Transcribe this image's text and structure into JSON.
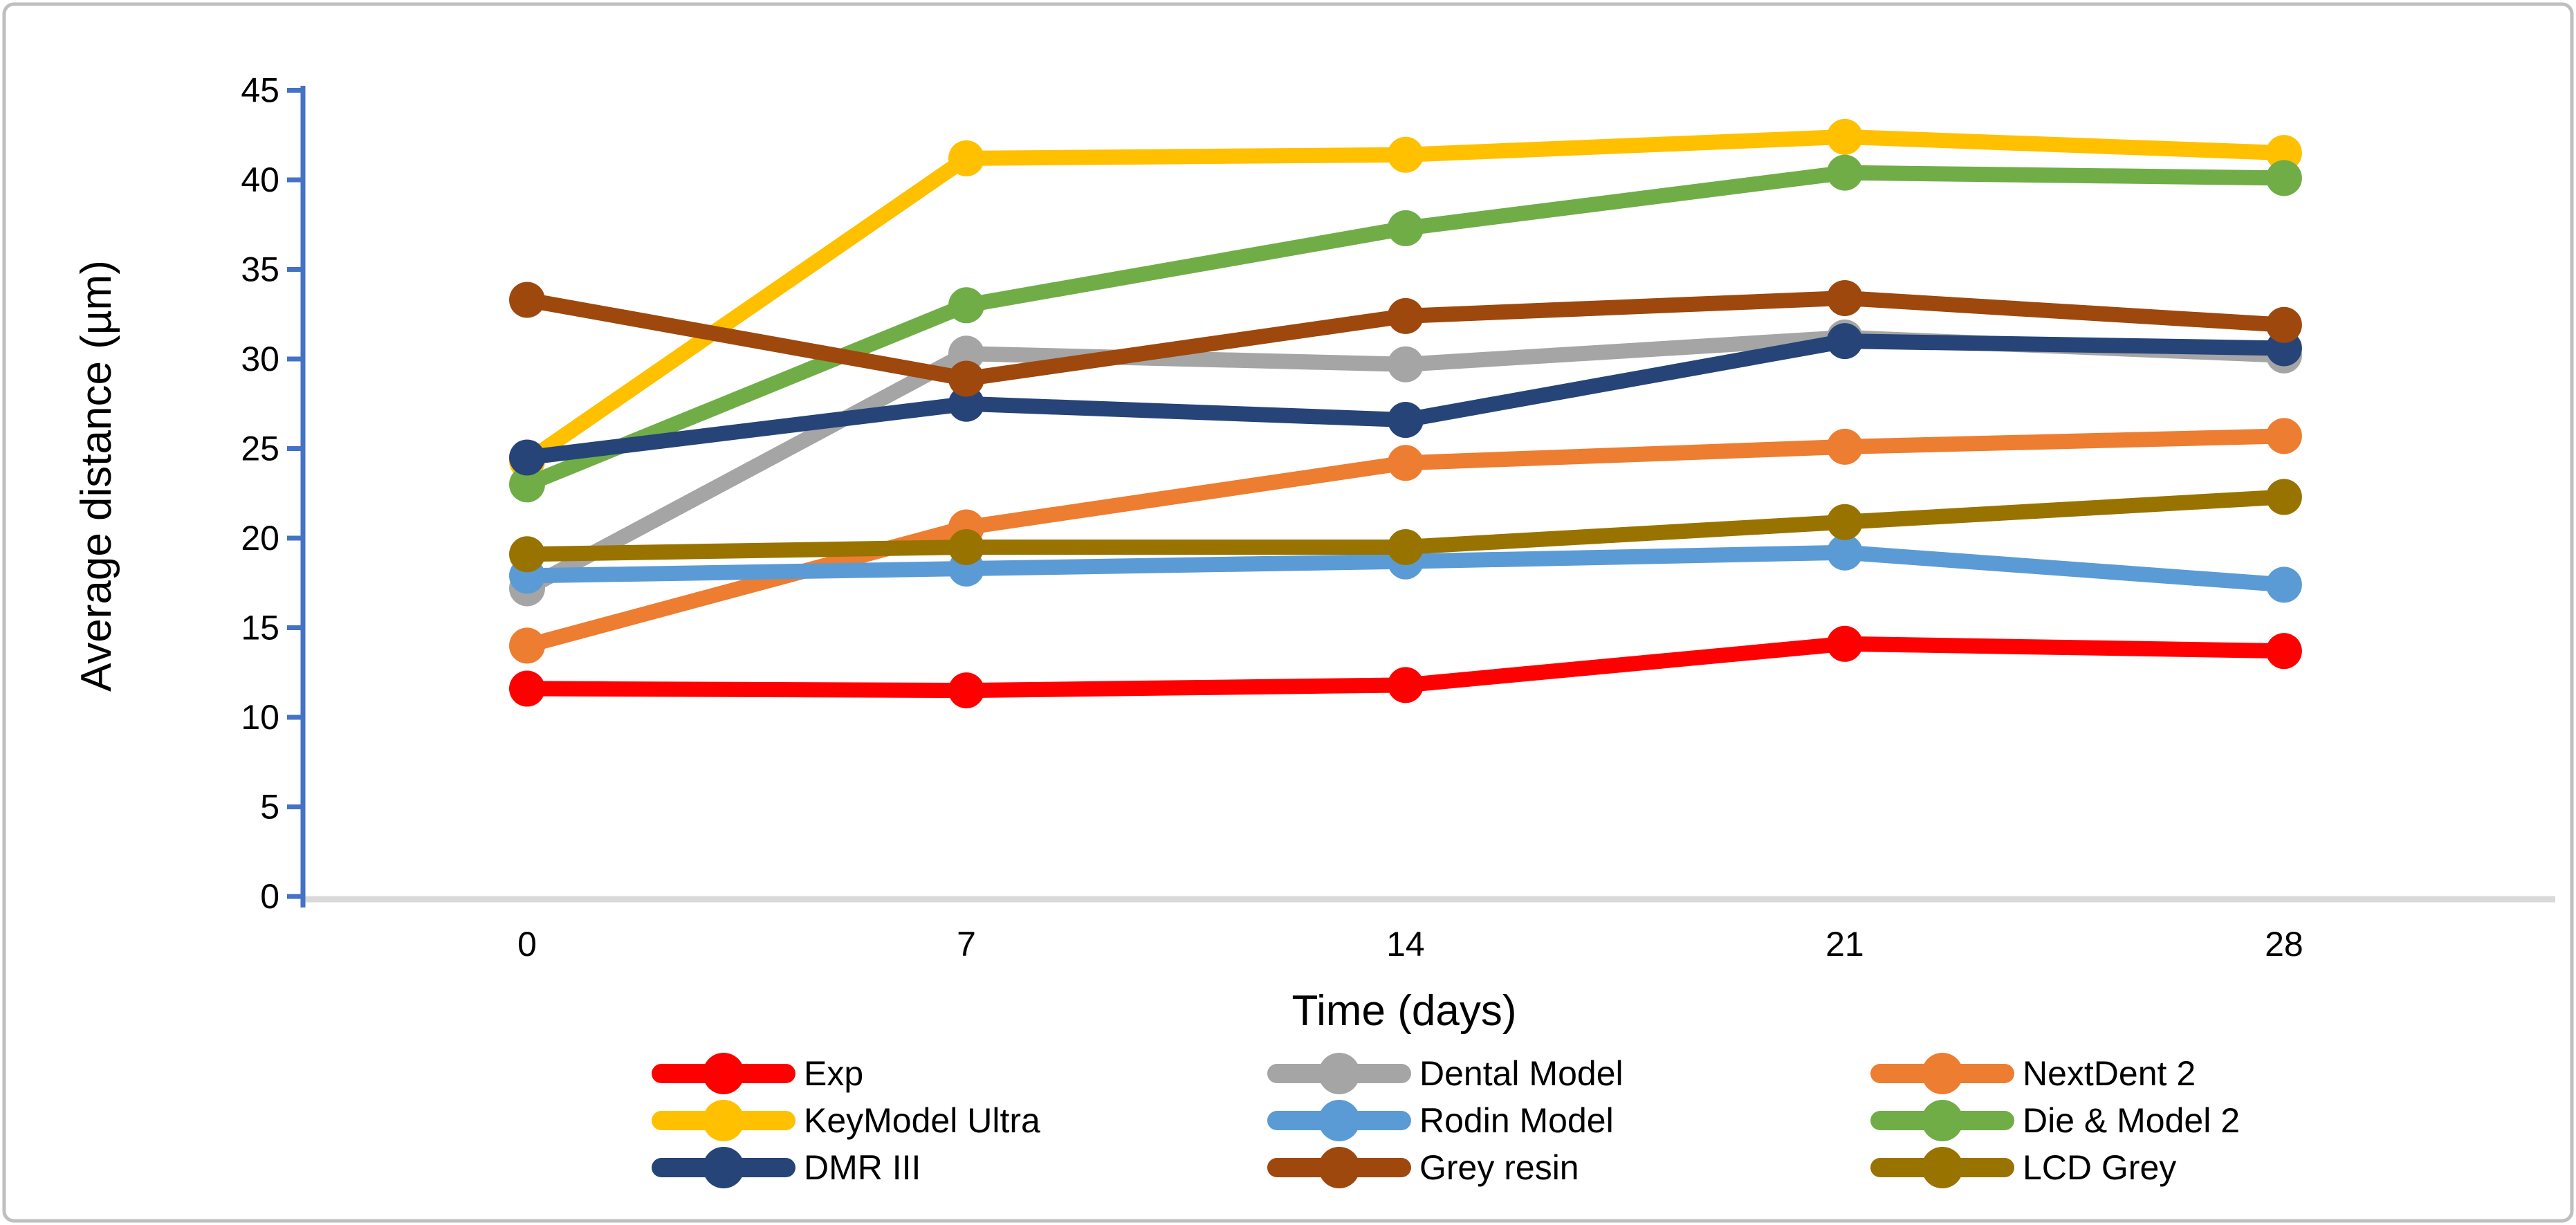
{
  "figure": {
    "background": "#ffffff",
    "border_color": "#BFBFBF"
  },
  "chart_data": {
    "type": "line",
    "title": "",
    "xlabel": "Time (days)",
    "ylabel": "Average distance (µm)",
    "x": [
      0,
      7,
      14,
      21,
      28
    ],
    "xtick_labels": [
      "0",
      "7",
      "14",
      "21",
      "28"
    ],
    "ylim": [
      0,
      45
    ],
    "ytick_step": 5,
    "ytick_labels": [
      "0",
      "5",
      "10",
      "15",
      "20",
      "25",
      "30",
      "35",
      "40",
      "45"
    ],
    "grid": false,
    "legend_position": "bottom",
    "legend_columns": 3,
    "y_axis_color": "#4472C4",
    "x_axis_line_color": "#D9D9D9",
    "tick_label_color": "#000000",
    "marker_style": "circle",
    "series": [
      {
        "name": "Exp",
        "color": "#FF0000",
        "values": [
          11.6,
          11.5,
          11.8,
          14.1,
          13.7
        ]
      },
      {
        "name": "Dental Model",
        "color": "#A5A5A5",
        "values": [
          17.2,
          30.3,
          29.7,
          31.2,
          30.2
        ]
      },
      {
        "name": "NextDent 2",
        "color": "#ED7D31",
        "values": [
          14.0,
          20.6,
          24.2,
          25.1,
          25.7
        ]
      },
      {
        "name": "KeyModel Ultra",
        "color": "#FFC000",
        "values": [
          24.3,
          41.2,
          41.4,
          42.4,
          41.5
        ]
      },
      {
        "name": "Rodin Model",
        "color": "#5B9BD5",
        "values": [
          17.9,
          18.3,
          18.7,
          19.2,
          17.4
        ]
      },
      {
        "name": "Die & Model 2",
        "color": "#70AD47",
        "values": [
          23.0,
          33.0,
          37.3,
          40.4,
          40.1
        ]
      },
      {
        "name": "DMR III",
        "color": "#264478",
        "values": [
          24.5,
          27.5,
          26.6,
          31.0,
          30.6
        ]
      },
      {
        "name": "Grey resin",
        "color": "#9E480E",
        "values": [
          33.3,
          28.9,
          32.4,
          33.4,
          31.9
        ]
      },
      {
        "name": "LCD Grey",
        "color": "#997300",
        "values": [
          19.1,
          19.5,
          19.5,
          20.9,
          22.3
        ]
      }
    ]
  }
}
